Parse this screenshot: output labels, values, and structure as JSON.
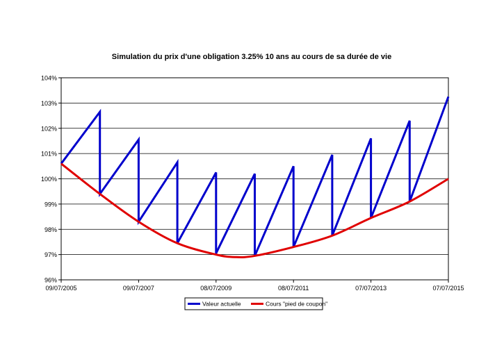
{
  "chart_data": {
    "type": "line",
    "title": "Simulation du prix d'une obligation 3.25% 10 ans au cours de sa durée de vie",
    "xlabel": "",
    "ylabel": "",
    "ylim": [
      96,
      104
    ],
    "xlim": [
      "09/07/2005",
      "07/07/2015"
    ],
    "y_ticks": [
      "96%",
      "97%",
      "98%",
      "99%",
      "100%",
      "101%",
      "102%",
      "103%",
      "104%"
    ],
    "x_ticks": [
      "09/07/2005",
      "09/07/2007",
      "08/07/2009",
      "08/07/2011",
      "07/07/2013",
      "07/07/2015"
    ],
    "x_tick_years": [
      2005.52,
      2007.52,
      2009.52,
      2011.52,
      2013.52,
      2015.52
    ],
    "grid": "horizontal",
    "legend_position": "bottom",
    "series": [
      {
        "name": "Valeur actuelle",
        "color": "#0000cc",
        "x": [
          2005.52,
          2006.52,
          2006.52,
          2007.52,
          2007.52,
          2008.52,
          2008.52,
          2009.52,
          2009.52,
          2010.52,
          2010.52,
          2011.52,
          2011.52,
          2012.52,
          2012.52,
          2013.52,
          2013.52,
          2014.52,
          2014.52,
          2015.52
        ],
        "values": [
          100.6,
          102.65,
          99.4,
          101.55,
          98.3,
          100.65,
          97.45,
          100.25,
          97.05,
          100.2,
          96.95,
          100.5,
          97.3,
          100.95,
          97.75,
          101.6,
          98.45,
          102.3,
          99.1,
          103.25
        ]
      },
      {
        "name": "Cours \"pied de coupon\"",
        "color": "#e00000",
        "x": [
          2005.52,
          2006.52,
          2007.52,
          2008.52,
          2009.52,
          2010.02,
          2010.52,
          2011.52,
          2012.52,
          2013.52,
          2014.52,
          2015.52
        ],
        "values": [
          100.6,
          99.4,
          98.3,
          97.45,
          97.0,
          96.9,
          96.95,
          97.3,
          97.75,
          98.45,
          99.1,
          100.0
        ]
      }
    ]
  }
}
